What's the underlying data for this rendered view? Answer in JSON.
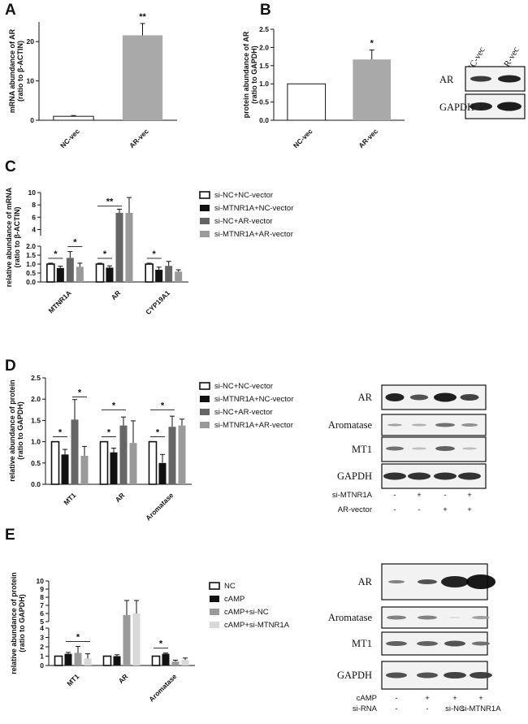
{
  "figure": {
    "panel_labels": [
      "A",
      "B",
      "C",
      "D",
      "E"
    ],
    "panel_b_blot": {
      "lanes": [
        "NC-vec",
        "AR-vec"
      ],
      "rows": [
        "AR",
        "GAPDH"
      ]
    },
    "panel_d_blot": {
      "rows": [
        "AR",
        "Aromatase",
        "MT1",
        "GAPDH"
      ],
      "conditions": [
        {
          "name": "si-MTNR1A",
          "values": [
            "-",
            "+",
            "-",
            "+"
          ]
        },
        {
          "name": "AR-vector",
          "values": [
            "-",
            "-",
            "+",
            "+"
          ]
        }
      ]
    },
    "panel_e_blot": {
      "rows": [
        "AR",
        "Aromatase",
        "MT1",
        "GAPDH"
      ],
      "conditions": [
        {
          "name": "cAMP",
          "values": [
            "-",
            "+",
            "+",
            "+"
          ]
        },
        {
          "name": "si-RNA",
          "values": [
            "-",
            "-",
            "si-NC",
            "si-MTNR1A"
          ]
        }
      ]
    },
    "colors": {
      "white_bar": "#ffffff",
      "black_bar": "#111111",
      "dark_gray": "#666666",
      "mid_gray": "#9a9a9a",
      "light_gray": "#b8b8b8",
      "lightest_gray": "#d8d8d8",
      "axis": "#111111"
    }
  },
  "chart_data": [
    {
      "id": "A",
      "type": "bar",
      "ylabel": "mRNA abundance of AR (ratio to β-ACTIN)",
      "categories": [
        "NC-vec",
        "AR-vec"
      ],
      "values": [
        1.0,
        21.6
      ],
      "errors": [
        0.2,
        3.0
      ],
      "ylim": [
        0,
        25
      ],
      "yticks": [
        "0",
        "10",
        "20"
      ],
      "annotations": [
        {
          "category": "AR-vec",
          "text": "**"
        }
      ],
      "legend": []
    },
    {
      "id": "B",
      "type": "bar",
      "ylabel": "protein abundance of AR (ratio to GAPDH)",
      "categories": [
        "NC-vec",
        "AR-vec"
      ],
      "values": [
        1.0,
        1.67
      ],
      "errors": [
        0,
        0.26
      ],
      "ylim": [
        0,
        2.5
      ],
      "yticks": [
        "0.0",
        "0.5",
        "1.0",
        "1.5",
        "2.0",
        "2.5"
      ],
      "annotations": [
        {
          "category": "AR-vec",
          "text": "*"
        }
      ],
      "legend": []
    },
    {
      "id": "C",
      "type": "bar",
      "ylabel": "relative abundance of mRNA (ratio to β-ACTIN)",
      "categories": [
        "MTNR1A",
        "AR",
        "CYP19A1"
      ],
      "series": [
        {
          "name": "si-NC+NC-vector",
          "values": [
            1.0,
            1.0,
            1.0
          ],
          "errors": [
            0.05,
            0.05,
            0.05
          ]
        },
        {
          "name": "si-MTNR1A+NC-vector",
          "values": [
            0.78,
            0.8,
            0.68
          ],
          "errors": [
            0.1,
            0.1,
            0.15
          ]
        },
        {
          "name": "si-NC+AR-vector",
          "values": [
            1.35,
            6.7,
            0.9
          ],
          "errors": [
            0.35,
            0.6,
            0.25
          ]
        },
        {
          "name": "si-MTNR1A+AR-vector",
          "values": [
            0.85,
            6.7,
            0.58
          ],
          "errors": [
            0.2,
            2.5,
            0.1
          ]
        }
      ],
      "broken_axis": true,
      "lower_ticks": [
        "0.0",
        "0.5",
        "1.0",
        "1.5",
        "2.0"
      ],
      "upper_ticks": [
        "4",
        "6",
        "8",
        "10"
      ],
      "annotations": [
        {
          "category": "MTNR1A",
          "text": "*",
          "between": [
            0,
            1
          ]
        },
        {
          "category": "MTNR1A",
          "text": "*",
          "between": [
            2,
            3
          ]
        },
        {
          "category": "AR",
          "text": "*",
          "between": [
            0,
            1
          ]
        },
        {
          "category": "AR",
          "text": "**",
          "between": [
            0,
            2
          ]
        },
        {
          "category": "CYP19A1",
          "text": "*",
          "between": [
            0,
            1
          ]
        }
      ]
    },
    {
      "id": "D",
      "type": "bar",
      "ylabel": "relative abundance of protein (ratio to GAPDH)",
      "categories": [
        "MT1",
        "AR",
        "Aromatase"
      ],
      "series": [
        {
          "name": "si-NC+NC-vector",
          "values": [
            1.0,
            1.0,
            1.0
          ],
          "errors": [
            0,
            0,
            0
          ]
        },
        {
          "name": "si-MTNR1A+NC-vector",
          "values": [
            0.7,
            0.75,
            0.5
          ],
          "errors": [
            0.12,
            0.1,
            0.2
          ]
        },
        {
          "name": "si-NC+AR-vector",
          "values": [
            1.52,
            1.38,
            1.35
          ],
          "errors": [
            0.47,
            0.2,
            0.25
          ]
        },
        {
          "name": "si-MTNR1A+AR-vector",
          "values": [
            0.67,
            0.97,
            1.38
          ],
          "errors": [
            0.22,
            0.52,
            0.15
          ]
        }
      ],
      "ylim": [
        0,
        2.5
      ],
      "yticks": [
        "0.0",
        "0.5",
        "1.0",
        "1.5",
        "2.0",
        "2.5"
      ],
      "annotations": [
        {
          "category": "MT1",
          "text": "*",
          "between": [
            0,
            1
          ]
        },
        {
          "category": "MT1",
          "text": "*",
          "between": [
            2,
            3
          ]
        },
        {
          "category": "AR",
          "text": "*",
          "between": [
            0,
            1
          ]
        },
        {
          "category": "AR",
          "text": "*",
          "between": [
            0,
            2
          ]
        },
        {
          "category": "Aromatase",
          "text": "*",
          "between": [
            0,
            1
          ]
        },
        {
          "category": "Aromatase",
          "text": "*",
          "between": [
            0,
            2
          ]
        }
      ]
    },
    {
      "id": "E",
      "type": "bar",
      "ylabel": "relative abundance of protein (ratio to GAPDH)",
      "categories": [
        "MT1",
        "AR",
        "Aromatase"
      ],
      "series": [
        {
          "name": "NC",
          "values": [
            1.0,
            1.0,
            1.0
          ],
          "errors": [
            0,
            0,
            0
          ]
        },
        {
          "name": "cAMP",
          "values": [
            1.25,
            1.0,
            1.25
          ],
          "errors": [
            0.15,
            0.15,
            0.08
          ]
        },
        {
          "name": "cAMP+si-NC",
          "values": [
            1.35,
            5.8,
            0.42
          ],
          "errors": [
            0.7,
            1.8,
            0.15
          ]
        },
        {
          "name": "cAMP+si-MTNR1A",
          "values": [
            0.75,
            6.0,
            0.6
          ],
          "errors": [
            0.5,
            1.6,
            0.2
          ]
        }
      ],
      "broken_axis": true,
      "lower_ticks": [
        "0",
        "1",
        "2",
        "3",
        "4"
      ],
      "upper_ticks": [
        "5",
        "6",
        "7",
        "8",
        "9",
        "10"
      ],
      "annotations": [
        {
          "category": "MT1",
          "text": "*",
          "between": [
            1,
            3
          ]
        },
        {
          "category": "Aromatase",
          "text": "*",
          "between": [
            0,
            1
          ]
        }
      ]
    }
  ]
}
